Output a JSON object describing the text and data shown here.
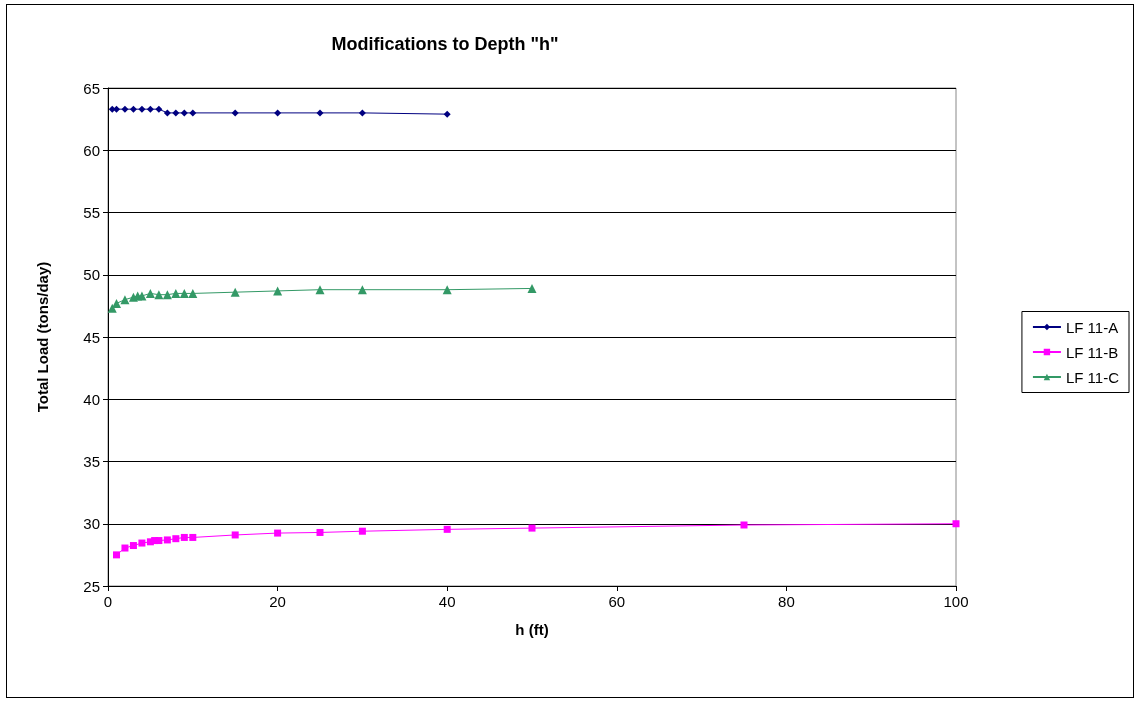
{
  "chart_data": {
    "type": "line",
    "title": "Modifications to Depth \"h\"",
    "xlabel": "h (ft)",
    "ylabel": "Total Load (tons/day)",
    "xlim": [
      0,
      100
    ],
    "xticks": [
      0,
      20,
      40,
      60,
      80,
      100
    ],
    "ylim": [
      25,
      65
    ],
    "yticks": [
      25,
      30,
      35,
      40,
      45,
      50,
      55,
      60,
      65
    ],
    "grid": "y",
    "legend": "right",
    "series": [
      {
        "name": "LF 11-A",
        "color": "#000080",
        "marker": "diamond",
        "x": [
          0.5,
          1,
          2,
          3,
          4,
          5,
          6,
          7,
          8,
          9,
          10,
          15,
          20,
          25,
          30,
          40
        ],
        "values": [
          63.3,
          63.3,
          63.3,
          63.3,
          63.3,
          63.3,
          63.3,
          63.0,
          63.0,
          63.0,
          63.0,
          63.0,
          63.0,
          63.0,
          63.0,
          62.9
        ]
      },
      {
        "name": "LF 11-B",
        "color": "#ff00ff",
        "marker": "square",
        "x": [
          1,
          2,
          3,
          4,
          5,
          5.5,
          6,
          7,
          8,
          9,
          10,
          15,
          20,
          25,
          30,
          40,
          50,
          75,
          100
        ],
        "values": [
          27.5,
          28.05,
          28.25,
          28.45,
          28.55,
          28.65,
          28.65,
          28.7,
          28.8,
          28.9,
          28.9,
          29.1,
          29.25,
          29.3,
          29.4,
          29.55,
          29.65,
          29.9,
          30.0
        ]
      },
      {
        "name": "LF 11-C",
        "color": "#339966",
        "marker": "triangle",
        "x": [
          0.5,
          1,
          2,
          3,
          3.5,
          4,
          5,
          6,
          7,
          8,
          9,
          10,
          15,
          20,
          25,
          30,
          40,
          50
        ],
        "values": [
          47.3,
          47.7,
          48.0,
          48.2,
          48.3,
          48.3,
          48.5,
          48.4,
          48.4,
          48.5,
          48.5,
          48.5,
          48.6,
          48.7,
          48.8,
          48.8,
          48.8,
          48.9
        ]
      }
    ]
  }
}
